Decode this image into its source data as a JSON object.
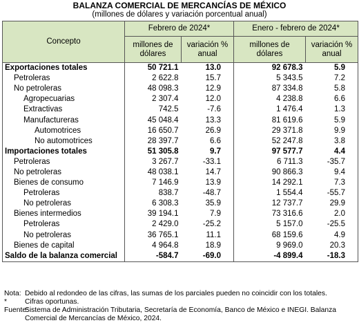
{
  "header": {
    "title": "BALANZA COMERCIAL DE MERCANCÍAS DE MÉXICO",
    "subtitle": "(millones de dólares y variación porcentual anual)"
  },
  "table": {
    "columns": {
      "concept": "Concepto",
      "groups": [
        "Febrero de 2024*",
        "Enero - febrero de 2024*"
      ],
      "sub": [
        "millones de dólares",
        "variación % anual",
        "millones de dólares",
        "variación % anual"
      ]
    },
    "rows": [
      [
        "Exportaciones totales",
        "50 721.1",
        "13.0",
        "92 678.3",
        "5.9"
      ],
      [
        "Petroleras",
        "2 622.8",
        "15.7",
        "5 343.5",
        "7.2"
      ],
      [
        "No petroleras",
        "48 098.3",
        "12.9",
        "87 334.8",
        "5.8"
      ],
      [
        "Agropecuarias",
        "2 307.4",
        "12.0",
        "4 238.8",
        "6.6"
      ],
      [
        "Extractivas",
        "742.5",
        "-7.6",
        "1 476.4",
        "1.3"
      ],
      [
        "Manufactureras",
        "45 048.4",
        "13.3",
        "81 619.6",
        "5.9"
      ],
      [
        "Automotrices",
        "16 650.7",
        "26.9",
        "29 371.8",
        "9.9"
      ],
      [
        "No automotrices",
        "28 397.7",
        "6.6",
        "52 247.8",
        "3.8"
      ],
      [
        "Importaciones totales",
        "51 305.8",
        "9.7",
        "97 577.7",
        "4.4"
      ],
      [
        "Petroleras",
        "3 267.7",
        "-33.1",
        "6 711.3",
        "-35.7"
      ],
      [
        "No petroleras",
        "48 038.1",
        "14.7",
        "90 866.3",
        "9.4"
      ],
      [
        "Bienes de consumo",
        "7 146.9",
        "13.9",
        "14 292.1",
        "7.3"
      ],
      [
        "Petroleras",
        "838.7",
        "-48.7",
        "1 554.4",
        "-55.7"
      ],
      [
        "No petroleras",
        "6 308.3",
        "35.9",
        "12 737.7",
        "29.9"
      ],
      [
        "Bienes intermedios",
        "39 194.1",
        "7.9",
        "73 316.6",
        "2.0"
      ],
      [
        "Petroleras",
        "2 429.0",
        "-25.2",
        "5 157.0",
        "-25.5"
      ],
      [
        "No petroleras",
        "36 765.1",
        "11.1",
        "68 159.6",
        "4.9"
      ],
      [
        "Bienes de capital",
        "4 964.8",
        "18.9",
        "9 969.0",
        "20.3"
      ],
      [
        "Saldo de la balanza comercial",
        "-584.7",
        "-69.0",
        "-4 899.4",
        "-18.3"
      ]
    ]
  },
  "notes": [
    {
      "label": "Nota:",
      "text": "Debido al redondeo de las cifras, las sumas de los parciales pueden no coincidir con los totales."
    },
    {
      "label": "*",
      "text": "Cifras oportunas."
    },
    {
      "label": "Fuente:",
      "text": "Sistema de Administración Tributaria, Secretaría de Economía, Banco de México e INEGI. Balanza Comercial de Mercancías de México, 2024."
    }
  ]
}
